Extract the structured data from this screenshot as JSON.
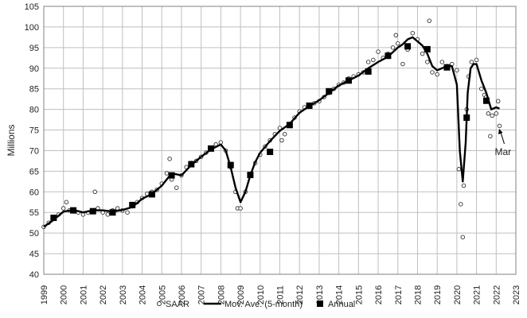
{
  "chart_data": {
    "type": "line",
    "title": "",
    "xlabel": "",
    "ylabel": "Millions",
    "xlim": [
      1999,
      2023
    ],
    "ylim": [
      40,
      105
    ],
    "x_ticks": [
      "1999",
      "2000",
      "2001",
      "2002",
      "2003",
      "2004",
      "2005",
      "2006",
      "2007",
      "2008",
      "2009",
      "2010",
      "2011",
      "2012",
      "2013",
      "2014",
      "2015",
      "2016",
      "2017",
      "2018",
      "2019",
      "2020",
      "2021",
      "2022",
      "2023"
    ],
    "y_ticks": [
      "40",
      "45",
      "50",
      "55",
      "60",
      "65",
      "70",
      "75",
      "80",
      "85",
      "90",
      "95",
      "100",
      "105"
    ],
    "grid": true,
    "legend_position": "bottom",
    "annotation": {
      "text": "Mar",
      "x": 2022.17,
      "y": 75.5
    },
    "series": [
      {
        "name": "SAAR",
        "style": "hollow-circle",
        "color": "#333333",
        "points": [
          [
            1999.0,
            51.5
          ],
          [
            1999.25,
            52.5
          ],
          [
            1999.5,
            53.5
          ],
          [
            1999.75,
            54.5
          ],
          [
            2000.0,
            56.0
          ],
          [
            2000.15,
            57.5
          ],
          [
            2000.3,
            55.5
          ],
          [
            2000.5,
            55.5
          ],
          [
            2000.75,
            55.0
          ],
          [
            2001.0,
            54.5
          ],
          [
            2001.25,
            55.0
          ],
          [
            2001.5,
            55.5
          ],
          [
            2001.6,
            60.0
          ],
          [
            2001.75,
            56.0
          ],
          [
            2002.0,
            55.0
          ],
          [
            2002.25,
            54.5
          ],
          [
            2002.5,
            55.5
          ],
          [
            2002.75,
            56.0
          ],
          [
            2003.0,
            55.5
          ],
          [
            2003.25,
            55.0
          ],
          [
            2003.5,
            56.5
          ],
          [
            2003.75,
            57.5
          ],
          [
            2004.0,
            58.5
          ],
          [
            2004.25,
            59.5
          ],
          [
            2004.5,
            60.0
          ],
          [
            2004.75,
            60.5
          ],
          [
            2005.0,
            62.0
          ],
          [
            2005.25,
            64.5
          ],
          [
            2005.4,
            68.0
          ],
          [
            2005.5,
            63.0
          ],
          [
            2005.75,
            61.0
          ],
          [
            2006.0,
            64.0
          ],
          [
            2006.25,
            66.0
          ],
          [
            2006.5,
            67.0
          ],
          [
            2006.75,
            67.5
          ],
          [
            2007.0,
            68.5
          ],
          [
            2007.25,
            69.5
          ],
          [
            2007.5,
            70.5
          ],
          [
            2007.75,
            71.5
          ],
          [
            2008.0,
            72.0
          ],
          [
            2008.25,
            70.0
          ],
          [
            2008.5,
            66.0
          ],
          [
            2008.75,
            60.0
          ],
          [
            2008.85,
            56.0
          ],
          [
            2009.0,
            56.0
          ],
          [
            2009.25,
            60.0
          ],
          [
            2009.5,
            64.0
          ],
          [
            2009.75,
            67.0
          ],
          [
            2010.0,
            69.0
          ],
          [
            2010.25,
            71.0
          ],
          [
            2010.5,
            72.5
          ],
          [
            2010.75,
            74.0
          ],
          [
            2011.0,
            75.5
          ],
          [
            2011.1,
            72.5
          ],
          [
            2011.25,
            74.0
          ],
          [
            2011.5,
            76.5
          ],
          [
            2011.75,
            78.0
          ],
          [
            2012.0,
            79.5
          ],
          [
            2012.25,
            80.5
          ],
          [
            2012.5,
            81.0
          ],
          [
            2012.75,
            81.5
          ],
          [
            2013.0,
            82.0
          ],
          [
            2013.25,
            83.0
          ],
          [
            2013.5,
            84.0
          ],
          [
            2013.75,
            85.0
          ],
          [
            2014.0,
            86.0
          ],
          [
            2014.25,
            86.5
          ],
          [
            2014.5,
            87.5
          ],
          [
            2014.75,
            88.0
          ],
          [
            2015.0,
            88.5
          ],
          [
            2015.25,
            89.0
          ],
          [
            2015.5,
            91.5
          ],
          [
            2015.75,
            92.0
          ],
          [
            2016.0,
            94.0
          ],
          [
            2016.25,
            92.5
          ],
          [
            2016.5,
            93.5
          ],
          [
            2016.75,
            95.0
          ],
          [
            2016.9,
            98.0
          ],
          [
            2017.0,
            96.0
          ],
          [
            2017.25,
            91.0
          ],
          [
            2017.5,
            94.5
          ],
          [
            2017.75,
            98.5
          ],
          [
            2018.0,
            97.0
          ],
          [
            2018.25,
            93.5
          ],
          [
            2018.5,
            91.5
          ],
          [
            2018.6,
            101.5
          ],
          [
            2018.75,
            89.0
          ],
          [
            2019.0,
            88.5
          ],
          [
            2019.25,
            91.5
          ],
          [
            2019.5,
            90.5
          ],
          [
            2019.75,
            91.0
          ],
          [
            2020.0,
            89.5
          ],
          [
            2020.1,
            65.5
          ],
          [
            2020.2,
            57.0
          ],
          [
            2020.3,
            49.0
          ],
          [
            2020.35,
            61.5
          ],
          [
            2020.5,
            80.0
          ],
          [
            2020.6,
            88.0
          ],
          [
            2020.75,
            91.5
          ],
          [
            2021.0,
            92.0
          ],
          [
            2021.25,
            85.0
          ],
          [
            2021.4,
            83.5
          ],
          [
            2021.5,
            83.0
          ],
          [
            2021.6,
            79.0
          ],
          [
            2021.7,
            73.5
          ],
          [
            2021.8,
            78.5
          ],
          [
            2022.0,
            79.0
          ],
          [
            2022.1,
            82.0
          ],
          [
            2022.17,
            76.0
          ]
        ]
      },
      {
        "name": "Mov. Ave. (5-month)",
        "style": "line",
        "color": "#000000",
        "points": [
          [
            1999.0,
            51.5
          ],
          [
            1999.5,
            53.2
          ],
          [
            2000.0,
            55.2
          ],
          [
            2000.5,
            55.6
          ],
          [
            2001.0,
            55.0
          ],
          [
            2001.5,
            55.5
          ],
          [
            2002.0,
            55.5
          ],
          [
            2002.5,
            55.2
          ],
          [
            2003.0,
            55.6
          ],
          [
            2003.5,
            56.3
          ],
          [
            2004.0,
            58.3
          ],
          [
            2004.5,
            59.5
          ],
          [
            2005.0,
            61.5
          ],
          [
            2005.5,
            64.5
          ],
          [
            2006.0,
            64.0
          ],
          [
            2006.5,
            66.5
          ],
          [
            2007.0,
            68.5
          ],
          [
            2007.5,
            70.3
          ],
          [
            2008.0,
            71.5
          ],
          [
            2008.25,
            70.0
          ],
          [
            2008.5,
            66.0
          ],
          [
            2008.75,
            61.0
          ],
          [
            2009.0,
            57.5
          ],
          [
            2009.25,
            60.0
          ],
          [
            2009.5,
            64.0
          ],
          [
            2009.75,
            67.2
          ],
          [
            2010.0,
            69.5
          ],
          [
            2010.5,
            72.3
          ],
          [
            2011.0,
            74.8
          ],
          [
            2011.5,
            76.5
          ],
          [
            2012.0,
            79.2
          ],
          [
            2012.5,
            80.8
          ],
          [
            2013.0,
            82.2
          ],
          [
            2013.5,
            84.0
          ],
          [
            2014.0,
            85.8
          ],
          [
            2014.5,
            87.0
          ],
          [
            2015.0,
            88.2
          ],
          [
            2015.5,
            90.0
          ],
          [
            2016.0,
            91.5
          ],
          [
            2016.5,
            92.8
          ],
          [
            2017.0,
            95.0
          ],
          [
            2017.25,
            95.8
          ],
          [
            2017.5,
            97.0
          ],
          [
            2017.75,
            97.5
          ],
          [
            2018.0,
            96.5
          ],
          [
            2018.25,
            95.5
          ],
          [
            2018.5,
            93.5
          ],
          [
            2018.75,
            90.5
          ],
          [
            2019.0,
            89.5
          ],
          [
            2019.5,
            90.5
          ],
          [
            2019.75,
            90.5
          ],
          [
            2020.0,
            86.0
          ],
          [
            2020.15,
            70.0
          ],
          [
            2020.3,
            62.5
          ],
          [
            2020.45,
            72.0
          ],
          [
            2020.55,
            84.0
          ],
          [
            2020.7,
            90.0
          ],
          [
            2020.85,
            91.0
          ],
          [
            2021.0,
            91.0
          ],
          [
            2021.25,
            87.0
          ],
          [
            2021.5,
            84.0
          ],
          [
            2021.75,
            80.0
          ],
          [
            2022.0,
            80.5
          ],
          [
            2022.17,
            80.2
          ]
        ]
      },
      {
        "name": "Annual",
        "style": "filled-square",
        "color": "#000000",
        "points": [
          [
            1999.5,
            53.7
          ],
          [
            2000.5,
            55.5
          ],
          [
            2001.5,
            55.3
          ],
          [
            2002.5,
            55.0
          ],
          [
            2003.5,
            56.8
          ],
          [
            2004.5,
            59.4
          ],
          [
            2005.5,
            64.0
          ],
          [
            2006.5,
            66.7
          ],
          [
            2007.5,
            70.5
          ],
          [
            2008.5,
            66.5
          ],
          [
            2009.5,
            64.1
          ],
          [
            2010.5,
            69.7
          ],
          [
            2011.5,
            76.2
          ],
          [
            2012.5,
            80.9
          ],
          [
            2013.5,
            84.4
          ],
          [
            2014.5,
            87.0
          ],
          [
            2015.5,
            89.2
          ],
          [
            2016.5,
            93.0
          ],
          [
            2017.5,
            95.3
          ],
          [
            2018.5,
            94.6
          ],
          [
            2019.5,
            90.2
          ],
          [
            2020.5,
            78.0
          ],
          [
            2021.5,
            82.1
          ]
        ]
      }
    ]
  }
}
